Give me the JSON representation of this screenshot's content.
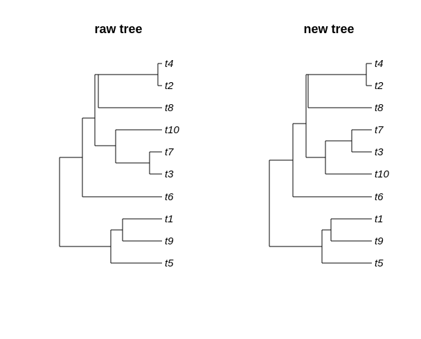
{
  "panels": [
    {
      "title": "raw tree",
      "tips": [
        "t4",
        "t2",
        "t8",
        "t10",
        "t7",
        "t3",
        "t6",
        "t1",
        "t9",
        "t5"
      ],
      "tree": {
        "children": [
          {
            "children": [
              {
                "children": [
                  {
                    "children": [
                      {
                        "tip": 0
                      },
                      {
                        "tip": 1
                      }
                    ]
                  },
                  {
                    "tip": 2
                  }
                ]
              },
              {
                "children": [
                  {
                    "tip": 3
                  },
                  {
                    "children": [
                      {
                        "tip": 4
                      },
                      {
                        "tip": 5
                      }
                    ]
                  }
                ]
              }
            ]
          },
          {
            "tip": 6
          }
        ],
        "sibling": {
          "children": [
            {
              "children": [
                {
                  "tip": 7
                },
                {
                  "tip": 8
                }
              ]
            },
            {
              "tip": 9
            }
          ]
        }
      }
    },
    {
      "title": "new tree",
      "tips": [
        "t4",
        "t2",
        "t8",
        "t7",
        "t3",
        "t10",
        "t6",
        "t1",
        "t9",
        "t5"
      ],
      "tree": {
        "children": [
          {
            "children": [
              {
                "children": [
                  {
                    "children": [
                      {
                        "tip": 0
                      },
                      {
                        "tip": 1
                      }
                    ]
                  },
                  {
                    "tip": 2
                  }
                ]
              },
              {
                "children": [
                  {
                    "children": [
                      {
                        "tip": 3
                      },
                      {
                        "tip": 4
                      }
                    ]
                  },
                  {
                    "tip": 5
                  }
                ]
              }
            ]
          },
          {
            "tip": 6
          }
        ],
        "sibling": {
          "children": [
            {
              "children": [
                {
                  "tip": 7
                },
                {
                  "tip": 8
                }
              ]
            },
            {
              "tip": 9
            }
          ]
        }
      }
    }
  ]
}
